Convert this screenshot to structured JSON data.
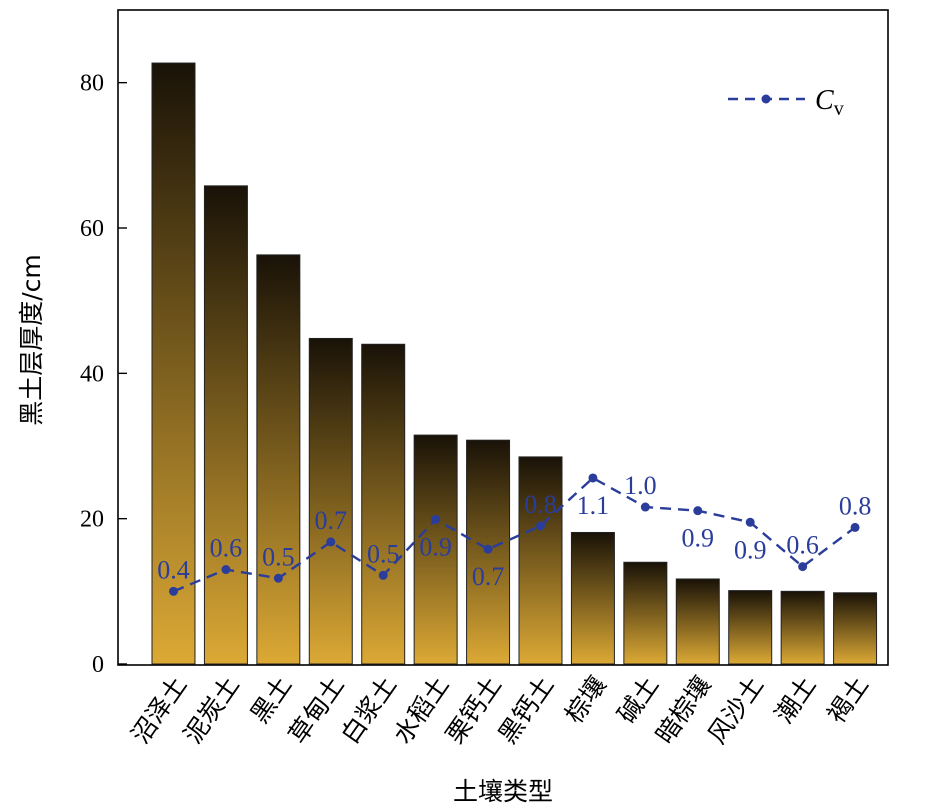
{
  "chart_data": {
    "type": "bar",
    "categories": [
      "沼泽土",
      "泥炭土",
      "黑土",
      "草甸土",
      "白浆土",
      "水稻土",
      "栗钙土",
      "黑钙土",
      "棕壤",
      "碱土",
      "暗棕壤",
      "风沙土",
      "潮土",
      "褐土"
    ],
    "values": [
      82.7,
      65.8,
      56.3,
      44.8,
      44.0,
      31.5,
      30.8,
      28.5,
      18.1,
      14.0,
      11.7,
      10.1,
      10.0,
      9.8
    ],
    "xlabel": "土壤类型",
    "ylabel": "黑土层厚度/cm",
    "ylim": [
      0,
      90
    ],
    "yticks": [
      0,
      20,
      40,
      60,
      80
    ],
    "bar_gradient": {
      "top": "#191207",
      "bottom": "#dca935"
    },
    "line_series": {
      "name": "C",
      "name_subscript": "v",
      "color": "#2b3d9a",
      "values": [
        10.0,
        13.0,
        11.8,
        16.8,
        12.2,
        19.9,
        15.8,
        19.0,
        25.6,
        21.6,
        21.1,
        19.5,
        13.4,
        18.8
      ],
      "labels": [
        "0.4",
        "0.6",
        "0.5",
        "0.7",
        "0.5",
        "0.9",
        "0.7",
        "0.8",
        "1.1",
        "1.0",
        "0.9",
        "0.9",
        "0.6",
        "0.8"
      ]
    },
    "legend": {
      "position": "top-right"
    },
    "grid": false
  }
}
